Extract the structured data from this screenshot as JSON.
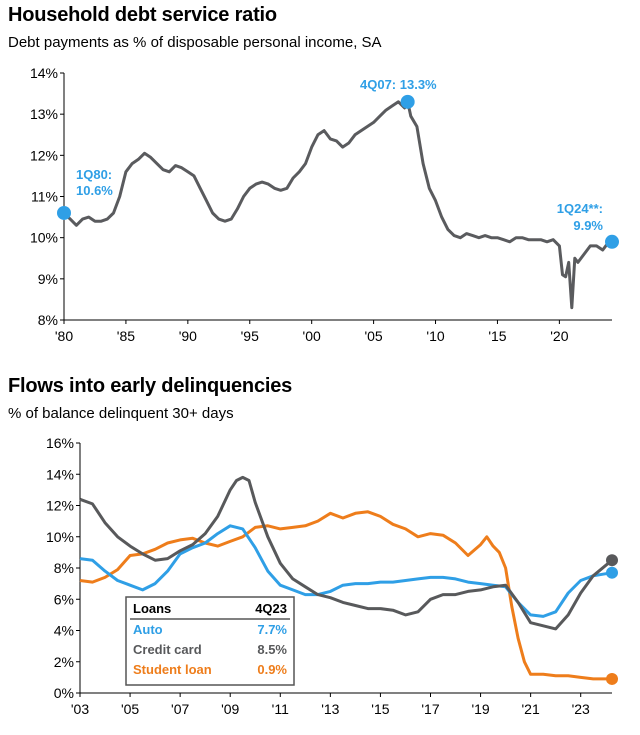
{
  "colors": {
    "dsr_line": "#5a5b5e",
    "marker": "#2f9fe6",
    "auto": "#2f9fe6",
    "credit_card": "#58595b",
    "student_loan": "#ee7d1b",
    "axis": "#000000"
  },
  "chart_data": [
    {
      "type": "line",
      "title": "Household debt service ratio",
      "subtitle": "Debt payments as % of disposable personal income, SA",
      "ylim": [
        8,
        14
      ],
      "yticks": [
        "8%",
        "9%",
        "10%",
        "11%",
        "12%",
        "13%",
        "14%"
      ],
      "xlim": [
        1980,
        2024.25
      ],
      "xticks": [
        {
          "x": 1980,
          "label": "'80"
        },
        {
          "x": 1985,
          "label": "'85"
        },
        {
          "x": 1990,
          "label": "'90"
        },
        {
          "x": 1995,
          "label": "'95"
        },
        {
          "x": 2000,
          "label": "'00"
        },
        {
          "x": 2005,
          "label": "'05"
        },
        {
          "x": 2010,
          "label": "'10"
        },
        {
          "x": 2015,
          "label": "'15"
        },
        {
          "x": 2020,
          "label": "'20"
        }
      ],
      "series": [
        {
          "name": "Debt service ratio",
          "x": [
            1980,
            1980.5,
            1981,
            1981.5,
            1982,
            1982.5,
            1983,
            1983.5,
            1984,
            1984.5,
            1985,
            1985.5,
            1986,
            1986.5,
            1987,
            1987.5,
            1988,
            1988.5,
            1989,
            1989.5,
            1990,
            1990.5,
            1991,
            1991.5,
            1992,
            1992.5,
            1993,
            1993.5,
            1994,
            1994.5,
            1995,
            1995.5,
            1996,
            1996.5,
            1997,
            1997.5,
            1998,
            1998.5,
            1999,
            1999.5,
            2000,
            2000.5,
            2001,
            2001.5,
            2002,
            2002.5,
            2003,
            2003.5,
            2004,
            2004.5,
            2005,
            2005.5,
            2006,
            2006.5,
            2007,
            2007.5,
            2007.75,
            2008,
            2008.5,
            2009,
            2009.5,
            2010,
            2010.5,
            2011,
            2011.5,
            2012,
            2012.5,
            2013,
            2013.5,
            2014,
            2014.5,
            2015,
            2015.5,
            2016,
            2016.5,
            2017,
            2017.5,
            2018,
            2018.5,
            2019,
            2019.5,
            2020,
            2020.25,
            2020.5,
            2020.75,
            2021,
            2021.25,
            2021.5,
            2022,
            2022.5,
            2023,
            2023.5,
            2024,
            2024.25
          ],
          "values": [
            10.6,
            10.45,
            10.3,
            10.45,
            10.5,
            10.4,
            10.4,
            10.45,
            10.6,
            11.0,
            11.6,
            11.8,
            11.9,
            12.05,
            11.95,
            11.8,
            11.65,
            11.6,
            11.75,
            11.7,
            11.6,
            11.5,
            11.2,
            10.9,
            10.6,
            10.45,
            10.4,
            10.45,
            10.7,
            11.0,
            11.2,
            11.3,
            11.35,
            11.3,
            11.2,
            11.15,
            11.2,
            11.45,
            11.6,
            11.8,
            12.2,
            12.5,
            12.6,
            12.4,
            12.35,
            12.2,
            12.3,
            12.5,
            12.6,
            12.7,
            12.8,
            12.95,
            13.1,
            13.2,
            13.3,
            13.15,
            13.3,
            12.95,
            12.7,
            11.8,
            11.2,
            10.9,
            10.5,
            10.2,
            10.05,
            10.0,
            10.1,
            10.05,
            10.0,
            10.05,
            10.0,
            10.0,
            9.95,
            9.9,
            10.0,
            10.0,
            9.95,
            9.95,
            9.95,
            9.9,
            9.95,
            9.8,
            9.1,
            9.05,
            9.4,
            8.3,
            9.5,
            9.4,
            9.6,
            9.8,
            9.8,
            9.7,
            9.9,
            9.9
          ]
        }
      ],
      "annotations": [
        {
          "label": "1Q80:",
          "value_label": "10.6%",
          "x": 1980,
          "y": 10.6
        },
        {
          "label": "4Q07:",
          "value_label": "13.3%",
          "x": 2007.75,
          "y": 13.3
        },
        {
          "label": "1Q24**:",
          "value_label": "9.9%",
          "x": 2024.25,
          "y": 9.9
        }
      ]
    },
    {
      "type": "line",
      "title": "Flows into early delinquencies",
      "subtitle": "% of balance delinquent 30+ days",
      "ylim": [
        0,
        16
      ],
      "yticks": [
        "0%",
        "2%",
        "4%",
        "6%",
        "8%",
        "10%",
        "12%",
        "14%",
        "16%"
      ],
      "xlim": [
        2003,
        2024.25
      ],
      "xticks": [
        {
          "x": 2003,
          "label": "'03"
        },
        {
          "x": 2005,
          "label": "'05"
        },
        {
          "x": 2007,
          "label": "'07"
        },
        {
          "x": 2009,
          "label": "'09"
        },
        {
          "x": 2011,
          "label": "'11"
        },
        {
          "x": 2013,
          "label": "'13"
        },
        {
          "x": 2015,
          "label": "'15"
        },
        {
          "x": 2017,
          "label": "'17"
        },
        {
          "x": 2019,
          "label": "'19"
        },
        {
          "x": 2021,
          "label": "'21"
        },
        {
          "x": 2023,
          "label": "'23"
        }
      ],
      "series": [
        {
          "name": "Auto",
          "x": [
            2003,
            2003.5,
            2004,
            2004.5,
            2005,
            2005.5,
            2006,
            2006.5,
            2007,
            2007.5,
            2008,
            2008.5,
            2009,
            2009.5,
            2010,
            2010.5,
            2011,
            2011.5,
            2012,
            2012.5,
            2013,
            2013.5,
            2014,
            2014.5,
            2015,
            2015.5,
            2016,
            2016.5,
            2017,
            2017.5,
            2018,
            2018.5,
            2019,
            2019.5,
            2020,
            2020.5,
            2021,
            2021.5,
            2022,
            2022.5,
            2023,
            2023.5,
            2024.25
          ],
          "values": [
            8.6,
            8.5,
            7.8,
            7.2,
            6.9,
            6.6,
            7.0,
            7.8,
            8.9,
            9.3,
            9.6,
            10.2,
            10.7,
            10.5,
            9.3,
            7.8,
            6.9,
            6.6,
            6.3,
            6.3,
            6.5,
            6.9,
            7.0,
            7.0,
            7.1,
            7.1,
            7.2,
            7.3,
            7.4,
            7.4,
            7.3,
            7.1,
            7.0,
            6.9,
            6.8,
            5.8,
            5.0,
            4.9,
            5.2,
            6.4,
            7.2,
            7.5,
            7.7
          ]
        },
        {
          "name": "Credit card",
          "x": [
            2003,
            2003.5,
            2004,
            2004.5,
            2005,
            2005.5,
            2006,
            2006.5,
            2007,
            2007.5,
            2008,
            2008.5,
            2009,
            2009.25,
            2009.5,
            2009.75,
            2010,
            2010.5,
            2011,
            2011.5,
            2012,
            2012.5,
            2013,
            2013.5,
            2014,
            2014.5,
            2015,
            2015.5,
            2016,
            2016.5,
            2017,
            2017.5,
            2018,
            2018.5,
            2019,
            2019.5,
            2020,
            2020.5,
            2021,
            2021.5,
            2022,
            2022.5,
            2023,
            2023.5,
            2024.25
          ],
          "values": [
            12.4,
            12.1,
            10.9,
            10.0,
            9.4,
            8.9,
            8.5,
            8.6,
            9.1,
            9.5,
            10.2,
            11.3,
            13.0,
            13.6,
            13.8,
            13.6,
            12.2,
            10.0,
            8.3,
            7.3,
            6.8,
            6.3,
            6.1,
            5.8,
            5.6,
            5.4,
            5.4,
            5.3,
            5.0,
            5.2,
            6.0,
            6.3,
            6.3,
            6.5,
            6.6,
            6.8,
            6.9,
            5.8,
            4.5,
            4.3,
            4.1,
            5.0,
            6.4,
            7.5,
            8.5
          ]
        },
        {
          "name": "Student loan",
          "x": [
            2003,
            2003.5,
            2004,
            2004.5,
            2005,
            2005.5,
            2006,
            2006.5,
            2007,
            2007.5,
            2008,
            2008.5,
            2009,
            2009.5,
            2010,
            2010.5,
            2011,
            2011.5,
            2012,
            2012.5,
            2013,
            2013.5,
            2014,
            2014.5,
            2015,
            2015.5,
            2016,
            2016.5,
            2017,
            2017.5,
            2018,
            2018.5,
            2019,
            2019.25,
            2019.5,
            2019.75,
            2020,
            2020.25,
            2020.5,
            2020.75,
            2021,
            2021.5,
            2022,
            2022.5,
            2023,
            2023.5,
            2024.25
          ],
          "values": [
            7.2,
            7.1,
            7.4,
            7.9,
            8.8,
            8.9,
            9.2,
            9.6,
            9.8,
            9.9,
            9.6,
            9.4,
            9.7,
            10.0,
            10.6,
            10.7,
            10.5,
            10.6,
            10.7,
            11.0,
            11.5,
            11.2,
            11.5,
            11.6,
            11.3,
            10.8,
            10.5,
            10.0,
            10.2,
            10.1,
            9.6,
            8.8,
            9.5,
            10.0,
            9.4,
            9.0,
            8.0,
            5.5,
            3.5,
            2.0,
            1.2,
            1.2,
            1.1,
            1.1,
            1.0,
            0.9,
            0.9
          ]
        }
      ],
      "legend": {
        "header": "Loans",
        "column": "4Q23",
        "rows": [
          {
            "name": "Auto",
            "value": "7.7%"
          },
          {
            "name": "Credit card",
            "value": "8.5%"
          },
          {
            "name": "Student loan",
            "value": "0.9%"
          }
        ]
      }
    }
  ]
}
